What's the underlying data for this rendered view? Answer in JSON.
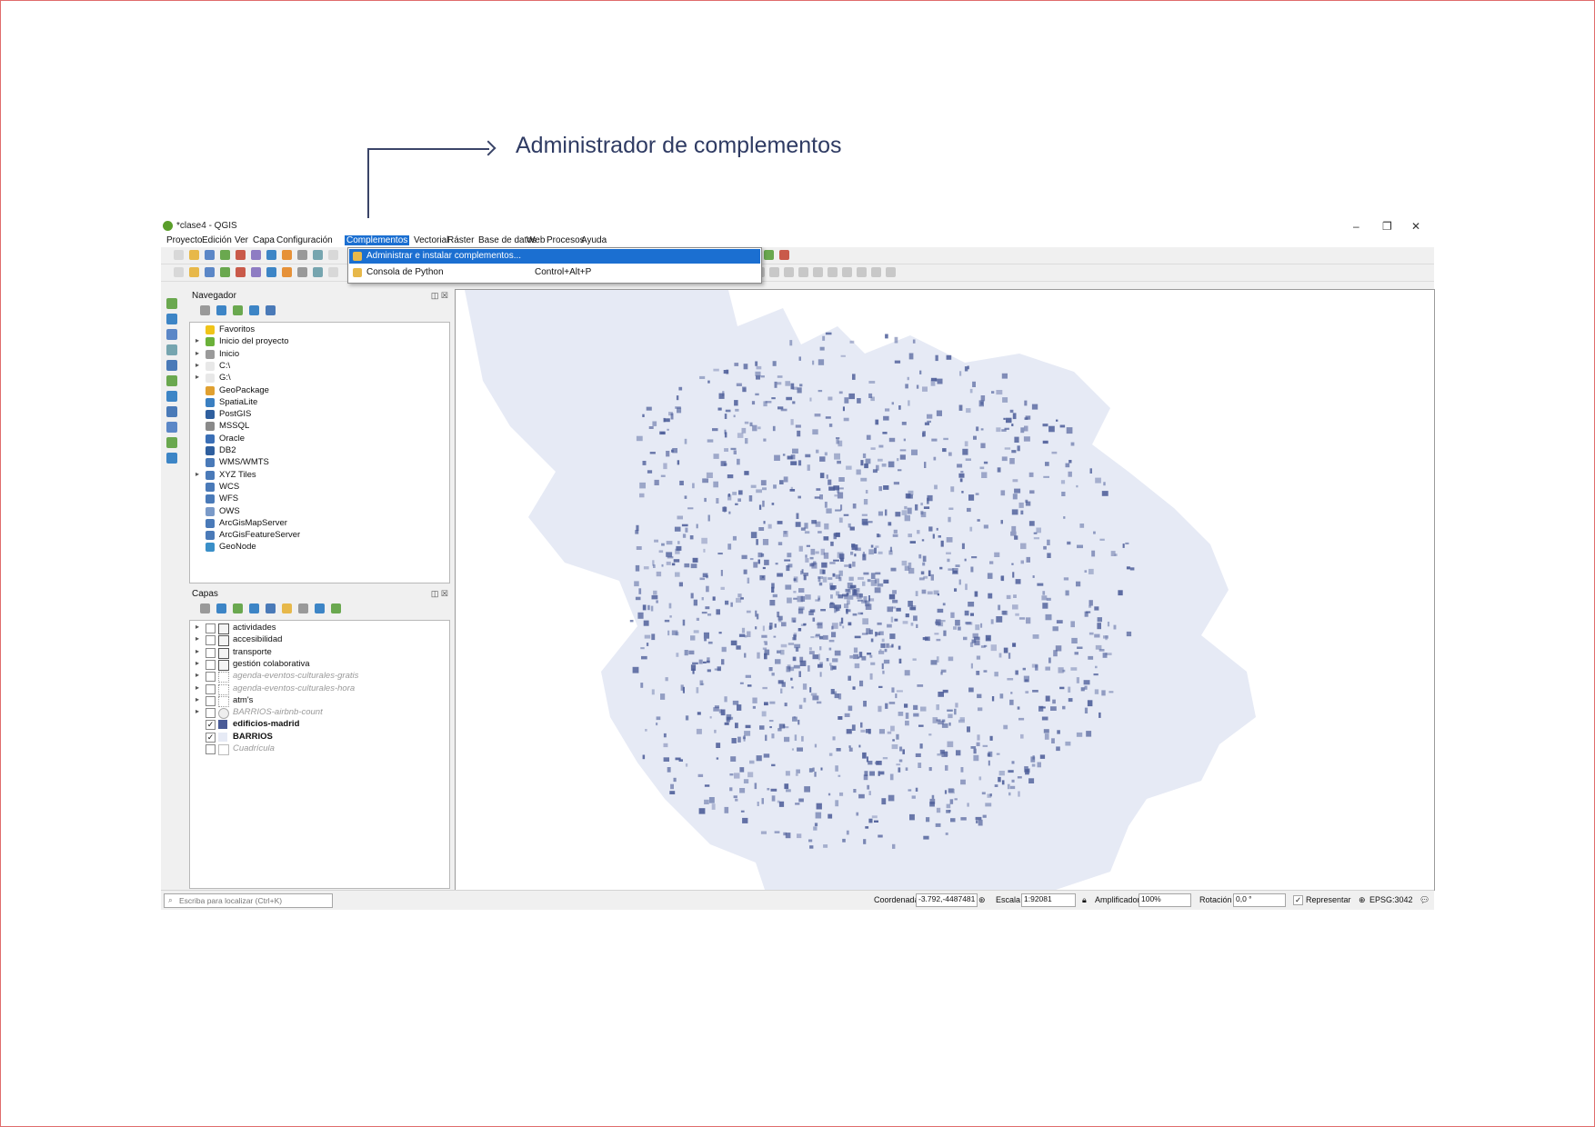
{
  "annotation": {
    "label": "Administrador de complementos"
  },
  "window": {
    "title": "*clase4 - QGIS",
    "min": "–",
    "max": "❐",
    "close": "✕"
  },
  "menubar": [
    "Proyecto",
    "Edición",
    "Ver",
    "Capa",
    "Configuración",
    "Complementos",
    "Vectorial",
    "Ráster",
    "Base de datos",
    "Web",
    "Procesos",
    "Ayuda"
  ],
  "menubar_active": "Complementos",
  "dropdown": {
    "items": [
      {
        "label": "Administrar e instalar complementos...",
        "shortcut": "",
        "highlighted": true
      },
      {
        "label": "Consola de Python",
        "shortcut": "Control+Alt+P",
        "highlighted": false
      }
    ]
  },
  "navigator": {
    "title": "Navegador",
    "items": [
      {
        "label": "Favoritos",
        "expand": "",
        "icon": "star-icon",
        "color": "#f0c419"
      },
      {
        "label": "Inicio del proyecto",
        "expand": "▸",
        "icon": "project-home-icon",
        "color": "#6bb13a"
      },
      {
        "label": "Inicio",
        "expand": "▸",
        "icon": "home-icon",
        "color": "#9a9a9a"
      },
      {
        "label": "C:\\",
        "expand": "▸",
        "icon": "folder-icon",
        "color": "#e8e8e8"
      },
      {
        "label": "G:\\",
        "expand": "▸",
        "icon": "folder-icon",
        "color": "#e8e8e8"
      },
      {
        "label": "GeoPackage",
        "expand": "",
        "icon": "geopackage-icon",
        "color": "#e0a030"
      },
      {
        "label": "SpatiaLite",
        "expand": "",
        "icon": "spatialite-icon",
        "color": "#3a7fc1"
      },
      {
        "label": "PostGIS",
        "expand": "",
        "icon": "postgis-icon",
        "color": "#2f5f9e"
      },
      {
        "label": "MSSQL",
        "expand": "",
        "icon": "mssql-icon",
        "color": "#8a8a8a"
      },
      {
        "label": "Oracle",
        "expand": "",
        "icon": "oracle-icon",
        "color": "#3b6fb6"
      },
      {
        "label": "DB2",
        "expand": "",
        "icon": "db2-icon",
        "color": "#2f5f9e"
      },
      {
        "label": "WMS/WMTS",
        "expand": "",
        "icon": "wms-icon",
        "color": "#4a7ab8"
      },
      {
        "label": "XYZ Tiles",
        "expand": "▸",
        "icon": "xyz-tiles-icon",
        "color": "#4a7ab8"
      },
      {
        "label": "WCS",
        "expand": "",
        "icon": "wcs-icon",
        "color": "#4a7ab8"
      },
      {
        "label": "WFS",
        "expand": "",
        "icon": "wfs-icon",
        "color": "#4a7ab8"
      },
      {
        "label": "OWS",
        "expand": "",
        "icon": "ows-icon",
        "color": "#7a9ac8"
      },
      {
        "label": "ArcGisMapServer",
        "expand": "",
        "icon": "arcgis-mapserver-icon",
        "color": "#4a7ab8"
      },
      {
        "label": "ArcGisFeatureServer",
        "expand": "",
        "icon": "arcgis-featureserver-icon",
        "color": "#4a7ab8"
      },
      {
        "label": "GeoNode",
        "expand": "",
        "icon": "geonode-icon",
        "color": "#3a8fc8"
      }
    ]
  },
  "layers": {
    "title": "Capas",
    "items": [
      {
        "label": "actividades",
        "checked": false,
        "expand": "▸",
        "style": "normal",
        "symbol": "group-icon"
      },
      {
        "label": "accesibilidad",
        "checked": false,
        "expand": "▸",
        "style": "normal",
        "symbol": "group-icon"
      },
      {
        "label": "transporte",
        "checked": false,
        "expand": "▸",
        "style": "normal",
        "symbol": "group-icon"
      },
      {
        "label": "gestión colaborativa",
        "checked": false,
        "expand": "▸",
        "style": "normal",
        "symbol": "group-icon"
      },
      {
        "label": "agenda-eventos-culturales-gratis",
        "checked": false,
        "expand": "▸",
        "style": "faded",
        "symbol": "point-layer-icon"
      },
      {
        "label": "agenda-eventos-culturales-hora",
        "checked": false,
        "expand": "▸",
        "style": "faded",
        "symbol": "point-layer-icon"
      },
      {
        "label": "atm's",
        "checked": false,
        "expand": "▸",
        "style": "normal",
        "symbol": "point-layer-icon"
      },
      {
        "label": "BARRIOS-airbnb-count",
        "checked": false,
        "expand": "▸",
        "style": "faded",
        "symbol": "polygon-layer-icon"
      },
      {
        "label": "edificios-madrid",
        "checked": true,
        "expand": "",
        "style": "bold",
        "symbol": "fill-dark"
      },
      {
        "label": "BARRIOS",
        "checked": true,
        "expand": "",
        "style": "bold",
        "symbol": "fill-light"
      },
      {
        "label": "Cuadrícula",
        "checked": false,
        "expand": "",
        "style": "faded",
        "symbol": "fill-empty"
      }
    ]
  },
  "statusbar": {
    "search_placeholder": "Escriba para localizar (Ctrl+K)",
    "coord_label": "Coordenada",
    "coord_value": "-3.792,-4487481",
    "scale_label": "Escala",
    "scale_value": "1:92081",
    "magnifier_label": "Amplificador",
    "magnifier_value": "100%",
    "rotation_label": "Rotación",
    "rotation_value": "0,0 °",
    "render_label": "Representar",
    "render_checked": true,
    "crs": "EPSG:3042"
  },
  "colors": {
    "map_fill": "#e6eaf5",
    "map_buildings": "#4a5b97",
    "accent": "#1b6fd1"
  }
}
